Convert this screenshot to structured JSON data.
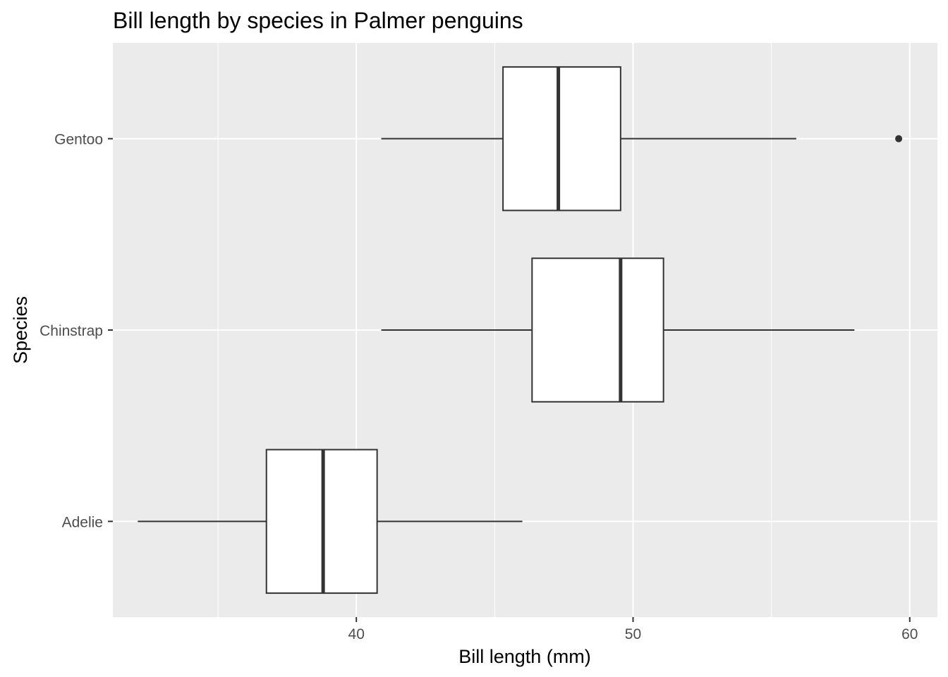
{
  "chart_data": {
    "type": "boxplot",
    "orientation": "horizontal",
    "title": "Bill length by species in Palmer penguins",
    "xlabel": "Bill length (mm)",
    "ylabel": "Species",
    "xlim": [
      31.2,
      61.0
    ],
    "xticks": [
      40,
      50,
      60
    ],
    "x_tick_labels": [
      "40",
      "50",
      "60"
    ],
    "categories": [
      "Adelie",
      "Chinstrap",
      "Gentoo"
    ],
    "boxes": [
      {
        "category": "Adelie",
        "whisker_low": 32.1,
        "q1": 36.75,
        "median": 38.8,
        "q3": 40.75,
        "whisker_high": 46.0,
        "outliers": []
      },
      {
        "category": "Chinstrap",
        "whisker_low": 40.9,
        "q1": 46.35,
        "median": 49.55,
        "q3": 51.1,
        "whisker_high": 58.0,
        "outliers": []
      },
      {
        "category": "Gentoo",
        "whisker_low": 40.9,
        "q1": 45.3,
        "median": 47.3,
        "q3": 49.55,
        "whisker_high": 55.9,
        "outliers": [
          59.6
        ]
      }
    ],
    "grid": true,
    "panel_background": "#ebebeb",
    "grid_color": "#ffffff",
    "box_fill": "#ffffff",
    "box_line_color": "#333333",
    "tick_label_color": "#4d4d4d",
    "legend": "none"
  }
}
